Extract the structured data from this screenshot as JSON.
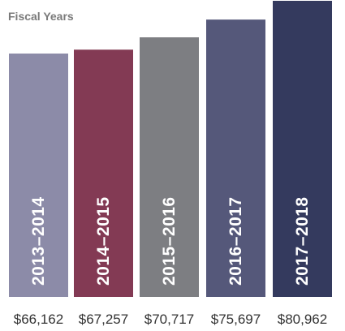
{
  "chart_data": {
    "type": "bar",
    "title": "Fiscal Years",
    "xlabel": "",
    "ylabel": "",
    "categories": [
      "2013–2014",
      "2014–2015",
      "2015–2016",
      "2016–2017",
      "2017–2018"
    ],
    "values": [
      66162,
      67257,
      70717,
      75697,
      80962
    ],
    "value_labels": [
      "$66,162",
      "$67,257",
      "$70,717",
      "$75,697",
      "$80,962"
    ],
    "bar_colors": [
      "#8c8ba8",
      "#833a54",
      "#7d7e82",
      "#55587a",
      "#343a5e"
    ],
    "grid": false,
    "legend": "none"
  }
}
